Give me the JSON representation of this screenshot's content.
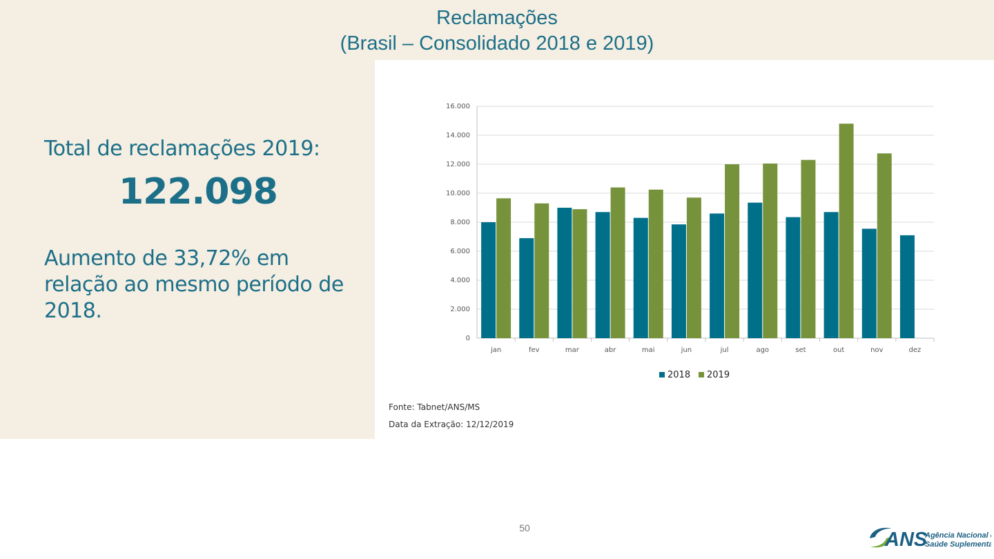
{
  "header": {
    "title_line1": "Reclamações",
    "title_line2": "(Brasil – Consolidado 2018 e 2019)"
  },
  "summary": {
    "total_label": "Total de reclamações 2019:",
    "total_value": "122.098",
    "increase_text": "Aumento de 33,72% em relação ao mesmo período de 2018."
  },
  "colors": {
    "series_2018": "#006f8a",
    "series_2019": "#76933c",
    "accent_text": "#1b6f88",
    "panel_bg": "#f5eee2"
  },
  "chart_data": {
    "type": "bar",
    "categories": [
      "jan",
      "fev",
      "mar",
      "abr",
      "mai",
      "jun",
      "jul",
      "ago",
      "set",
      "out",
      "nov",
      "dez"
    ],
    "series": [
      {
        "name": "2018",
        "values": [
          8000,
          6900,
          9000,
          8700,
          8300,
          7850,
          8600,
          9350,
          8350,
          8700,
          7550,
          7100
        ]
      },
      {
        "name": "2019",
        "values": [
          9650,
          9300,
          8900,
          10400,
          10250,
          9700,
          12000,
          12050,
          12300,
          14800,
          12750,
          null
        ]
      }
    ],
    "yticks": [
      "0",
      "2.000",
      "4.000",
      "6.000",
      "8.000",
      "10.000",
      "12.000",
      "14.000",
      "16.000"
    ],
    "ylim": [
      0,
      16000
    ],
    "ytick_step": 2000,
    "grid": true,
    "legend_position": "bottom"
  },
  "footer": {
    "source": "Fonte: Tabnet/ANS/MS",
    "extraction_date": "Data da Extração: 12/12/2019",
    "page_number": "50",
    "logo_abbr": "ANS",
    "logo_line1": "Agência Nacional de",
    "logo_line2": "Saúde Suplementar"
  }
}
